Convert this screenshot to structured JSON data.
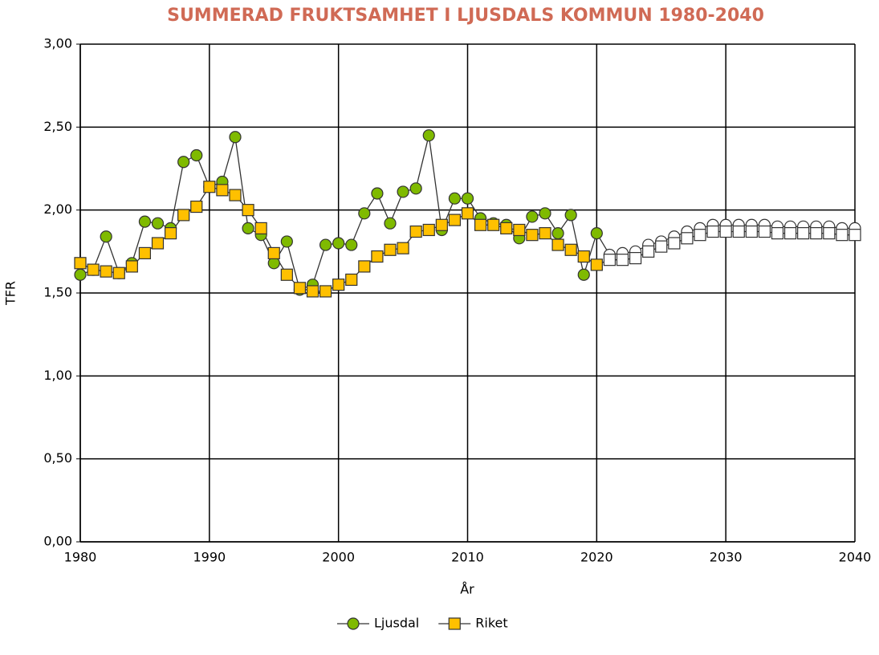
{
  "chart_data": {
    "type": "line",
    "title": "SUMMERAD FRUKTSAMHET I LJUSDALS KOMMUN 1980-2040",
    "x_label": "År",
    "y_label": "TFR",
    "x": [
      1980,
      1981,
      1982,
      1983,
      1984,
      1985,
      1986,
      1987,
      1988,
      1989,
      1990,
      1991,
      1992,
      1993,
      1994,
      1995,
      1996,
      1997,
      1998,
      1999,
      2000,
      2001,
      2002,
      2003,
      2004,
      2005,
      2006,
      2007,
      2008,
      2009,
      2010,
      2011,
      2012,
      2013,
      2014,
      2015,
      2016,
      2017,
      2018,
      2019,
      2020,
      2021,
      2022,
      2023,
      2024,
      2025,
      2026,
      2027,
      2028,
      2029,
      2030,
      2031,
      2032,
      2033,
      2034,
      2035,
      2036,
      2037,
      2038,
      2039,
      2040
    ],
    "series": [
      {
        "name": "Ljusdal",
        "color": "#7fba00",
        "marker": "circle",
        "values": [
          1.61,
          1.64,
          1.84,
          1.62,
          1.68,
          1.93,
          1.92,
          1.89,
          2.29,
          2.33,
          2.14,
          2.17,
          2.44,
          1.89,
          1.85,
          1.68,
          1.81,
          1.52,
          1.55,
          1.79,
          1.8,
          1.79,
          1.98,
          2.1,
          1.92,
          2.11,
          2.13,
          2.45,
          1.88,
          2.07,
          2.07,
          1.95,
          1.92,
          1.91,
          1.83,
          1.96,
          1.98,
          1.86,
          1.97,
          1.61,
          1.86,
          1.73,
          1.74,
          1.75,
          1.79,
          1.81,
          1.84,
          1.87,
          1.89,
          1.91,
          1.91,
          1.91,
          1.91,
          1.91,
          1.9,
          1.9,
          1.9,
          1.9,
          1.9,
          1.89,
          1.89
        ]
      },
      {
        "name": "Riket",
        "color": "#ffc000",
        "marker": "square",
        "values": [
          1.68,
          1.64,
          1.63,
          1.62,
          1.66,
          1.74,
          1.8,
          1.86,
          1.97,
          2.02,
          2.14,
          2.12,
          2.09,
          2.0,
          1.89,
          1.74,
          1.61,
          1.53,
          1.51,
          1.51,
          1.55,
          1.58,
          1.66,
          1.72,
          1.76,
          1.77,
          1.87,
          1.88,
          1.91,
          1.94,
          1.98,
          1.91,
          1.91,
          1.89,
          1.88,
          1.85,
          1.86,
          1.79,
          1.76,
          1.72,
          1.67,
          1.7,
          1.7,
          1.71,
          1.75,
          1.78,
          1.8,
          1.83,
          1.85,
          1.87,
          1.87,
          1.87,
          1.87,
          1.87,
          1.86,
          1.86,
          1.86,
          1.86,
          1.86,
          1.85,
          1.85
        ]
      }
    ],
    "projection_from": 2021,
    "projection_color": "#ffffff",
    "xlim": [
      1980,
      2040
    ],
    "xticks": [
      1980,
      1990,
      2000,
      2010,
      2020,
      2030,
      2040
    ],
    "ylim": [
      0,
      3
    ],
    "yticks": [
      {
        "value": 0,
        "label": "0,00"
      },
      {
        "value": 0.5,
        "label": "0,50"
      },
      {
        "value": 1,
        "label": "1,00"
      },
      {
        "value": 1.5,
        "label": "1,50"
      },
      {
        "value": 2,
        "label": "2,00"
      },
      {
        "value": 2.5,
        "label": "2,50"
      },
      {
        "value": 3,
        "label": "3,00"
      }
    ],
    "grid": true,
    "legend": "bottom",
    "title_color": "#d06a55"
  }
}
